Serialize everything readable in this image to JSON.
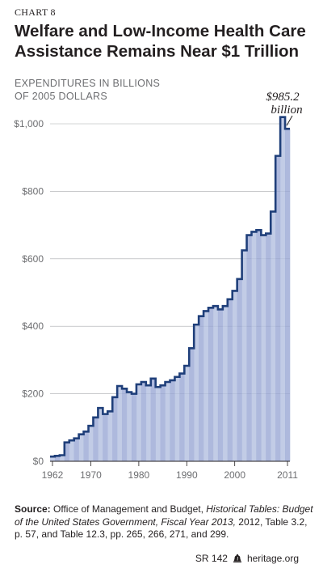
{
  "header": {
    "chart_number": "CHART 8",
    "title": "Welfare and Low-Income Health Care Assistance Remains Near $1 Trillion",
    "ylabel_line1": "EXPENDITURES IN BILLIONS",
    "ylabel_line2": "OF 2005 DOLLARS"
  },
  "annotation": {
    "line1": "$985.2",
    "line2": "billion"
  },
  "source": {
    "label": "Source:",
    "text_1": " Office of Management and Budget, ",
    "italic": "Historical Tables: Budget of the United States Government, Fiscal Year 2013,",
    "text_2": " 2012, Table 3.2, p. 57, and Table 12.3, pp. 265, 266, 271, and 299."
  },
  "footer": {
    "report_id": "SR 142",
    "site": "heritage.org"
  },
  "colors": {
    "line": "#1f3f7a",
    "fill": "#b3bfe0",
    "fill_dark": "#9aa8d4",
    "grid": "#a7a9ac"
  },
  "chart_data": {
    "type": "area",
    "title": "Welfare and Low-Income Health Care Assistance Remains Near $1 Trillion",
    "ylabel": "EXPENDITURES IN BILLIONS OF 2005 DOLLARS",
    "xlim": [
      1962,
      2011
    ],
    "ylim": [
      0,
      1000
    ],
    "y_ticks": [
      0,
      200,
      400,
      600,
      800,
      1000
    ],
    "y_tick_labels": [
      "$0",
      "$200",
      "$400",
      "$600",
      "$800",
      "$1,000"
    ],
    "x_ticks": [
      1962,
      1970,
      1980,
      1990,
      2000,
      2011
    ],
    "x_tick_labels": [
      "1962",
      "1970",
      "1980",
      "1990",
      "2000",
      "2011"
    ],
    "grid": true,
    "x": [
      1962,
      1963,
      1964,
      1965,
      1966,
      1967,
      1968,
      1969,
      1970,
      1971,
      1972,
      1973,
      1974,
      1975,
      1976,
      1977,
      1978,
      1979,
      1980,
      1981,
      1982,
      1983,
      1984,
      1985,
      1986,
      1987,
      1988,
      1989,
      1990,
      1991,
      1992,
      1993,
      1994,
      1995,
      1996,
      1997,
      1998,
      1999,
      2000,
      2001,
      2002,
      2003,
      2004,
      2005,
      2006,
      2007,
      2008,
      2009,
      2010,
      2011
    ],
    "values": [
      14,
      16,
      18,
      56,
      62,
      68,
      80,
      88,
      105,
      130,
      158,
      140,
      148,
      190,
      223,
      215,
      205,
      200,
      228,
      235,
      225,
      245,
      220,
      225,
      235,
      240,
      250,
      260,
      283,
      335,
      405,
      430,
      445,
      455,
      460,
      450,
      460,
      480,
      505,
      540,
      625,
      670,
      680,
      685,
      670,
      675,
      740,
      905,
      1020,
      985.2
    ]
  }
}
